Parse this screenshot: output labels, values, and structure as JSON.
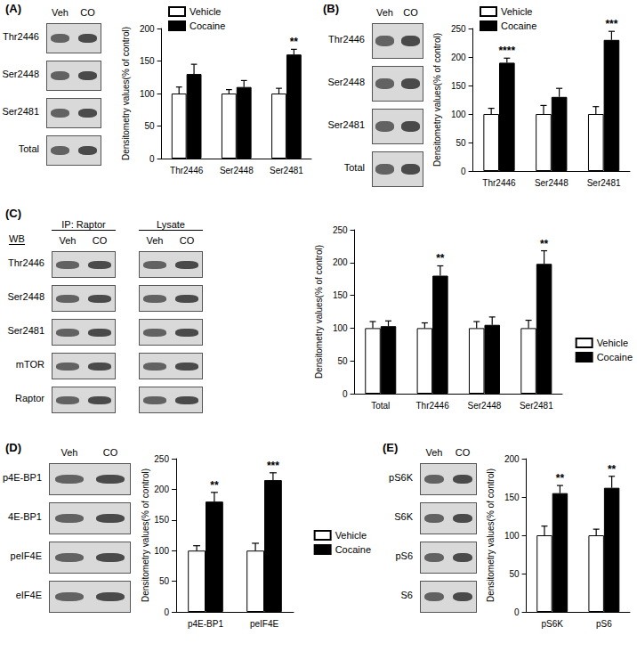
{
  "chart_data": [
    {
      "type": "bar",
      "title": "(A)",
      "ylabel": "Densitometry values(% of control)",
      "categories": [
        "Thr2446",
        "Ser2448",
        "Ser2481"
      ],
      "series": [
        {
          "name": "Vehicle",
          "color": "#ffffff",
          "values": [
            100,
            100,
            100
          ],
          "errors": [
            10,
            6,
            8
          ]
        },
        {
          "name": "Cocaine",
          "color": "#000000",
          "values": [
            130,
            110,
            160
          ],
          "errors": [
            15,
            10,
            8
          ],
          "annotations": [
            null,
            null,
            "**"
          ]
        }
      ],
      "ylim": [
        0,
        200
      ],
      "yticks": [
        0,
        50,
        100,
        150,
        200
      ],
      "grid": false,
      "legend": "top-left"
    },
    {
      "type": "bar",
      "title": "(B)",
      "ylabel": "Densitometry values(% of control)",
      "categories": [
        "Thr2446",
        "Ser2448",
        "Ser2481"
      ],
      "series": [
        {
          "name": "Vehicle",
          "color": "#ffffff",
          "values": [
            100,
            100,
            100
          ],
          "errors": [
            10,
            15,
            13
          ]
        },
        {
          "name": "Cocaine",
          "color": "#000000",
          "values": [
            190,
            130,
            230
          ],
          "errors": [
            8,
            15,
            15
          ],
          "annotations": [
            "****",
            null,
            "***"
          ]
        }
      ],
      "ylim": [
        0,
        250
      ],
      "yticks": [
        0,
        50,
        100,
        150,
        200,
        250
      ],
      "grid": false,
      "legend": "top-left"
    },
    {
      "type": "bar",
      "title": "(C)",
      "ylabel": "Densitometry values(% of control)",
      "categories": [
        "Total",
        "Thr2446",
        "Ser2448",
        "Ser2481"
      ],
      "series": [
        {
          "name": "Vehicle",
          "color": "#ffffff",
          "values": [
            100,
            100,
            100,
            100
          ],
          "errors": [
            10,
            8,
            10,
            12
          ]
        },
        {
          "name": "Cocaine",
          "color": "#000000",
          "values": [
            103,
            180,
            105,
            198
          ],
          "errors": [
            8,
            15,
            12,
            20
          ],
          "annotations": [
            null,
            "**",
            null,
            "**"
          ]
        }
      ],
      "ylim": [
        0,
        250
      ],
      "yticks": [
        0,
        50,
        100,
        150,
        200,
        250
      ],
      "grid": false,
      "legend": "bottom-right"
    },
    {
      "type": "bar",
      "title": "(D)",
      "ylabel": "Densitometry values(% of control)",
      "categories": [
        "p4E-BP1",
        "peIF4E"
      ],
      "series": [
        {
          "name": "Vehicle",
          "color": "#ffffff",
          "values": [
            100,
            100
          ],
          "errors": [
            8,
            12
          ]
        },
        {
          "name": "Cocaine",
          "color": "#000000",
          "values": [
            180,
            215
          ],
          "errors": [
            15,
            12
          ],
          "annotations": [
            "**",
            "***"
          ]
        }
      ],
      "ylim": [
        0,
        250
      ],
      "yticks": [
        0,
        50,
        100,
        150,
        200,
        250
      ],
      "grid": false,
      "legend": "right"
    },
    {
      "type": "bar",
      "title": "(E)",
      "ylabel": "Densitometry values(% of control)",
      "categories": [
        "pS6K",
        "pS6"
      ],
      "series": [
        {
          "name": "Vehicle",
          "color": "#ffffff",
          "values": [
            100,
            100
          ],
          "errors": [
            12,
            8
          ]
        },
        {
          "name": "Cocaine",
          "color": "#000000",
          "values": [
            155,
            162
          ],
          "errors": [
            10,
            15
          ],
          "annotations": [
            "**",
            "**"
          ]
        }
      ],
      "ylim": [
        0,
        200
      ],
      "yticks": [
        0,
        50,
        100,
        150,
        200
      ],
      "grid": false
    }
  ],
  "blots": [
    {
      "groups": [
        {
          "columns": [
            "Veh",
            "CO"
          ]
        }
      ],
      "rows": [
        "Thr2446",
        "Ser2448",
        "Ser2481",
        "Total"
      ]
    },
    {
      "groups": [
        {
          "columns": [
            "Veh",
            "CO"
          ]
        }
      ],
      "rows": [
        "Thr2446",
        "Ser2448",
        "Ser2481",
        "Total"
      ]
    },
    {
      "corner": "WB",
      "groups": [
        {
          "header": "IP: Raptor",
          "columns": [
            "Veh",
            "CO"
          ]
        },
        {
          "header": "Lysate",
          "columns": [
            "Veh",
            "CO"
          ]
        }
      ],
      "rows": [
        "Thr2446",
        "Ser2448",
        "Ser2481",
        "mTOR",
        "Raptor"
      ]
    },
    {
      "groups": [
        {
          "columns": [
            "Veh",
            "CO"
          ]
        }
      ],
      "rows": [
        "p4E-BP1",
        "4E-BP1",
        "peIF4E",
        "eIF4E"
      ]
    },
    {
      "groups": [
        {
          "columns": [
            "Veh",
            "CO"
          ]
        }
      ],
      "rows": [
        "pS6K",
        "S6K",
        "pS6",
        "S6"
      ]
    }
  ]
}
